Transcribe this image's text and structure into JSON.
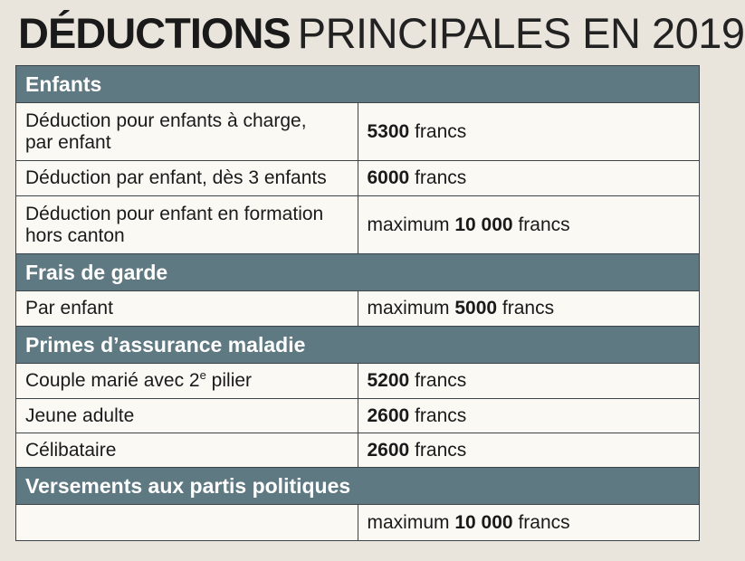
{
  "title": {
    "bold": "DÉDUCTIONS",
    "light": "PRINCIPALES EN 2019"
  },
  "sections": {
    "enfants": {
      "heading": "Enfants",
      "rows": [
        {
          "label_line1": "Déduction pour enfants à charge,",
          "label_line2": "par enfant",
          "prefix": "",
          "amount": "5300",
          "unit": "francs"
        },
        {
          "label": "Déduction par enfant, dès 3 enfants",
          "prefix": "",
          "amount": "6000",
          "unit": "francs"
        },
        {
          "label_line1": "Déduction pour enfant en formation",
          "label_line2": "hors canton",
          "prefix": "maximum",
          "amount": "10 000",
          "unit": "francs"
        }
      ]
    },
    "frais_garde": {
      "heading": "Frais de garde",
      "rows": [
        {
          "label": "Par enfant",
          "prefix": "maximum",
          "amount": "5000",
          "unit": "francs"
        }
      ]
    },
    "primes": {
      "heading": "Primes d’assurance maladie",
      "rows": [
        {
          "label_before": "Couple marié avec 2",
          "label_sup": "e",
          "label_after": " pilier",
          "prefix": "",
          "amount": "5200",
          "unit": "francs"
        },
        {
          "label": "Jeune adulte",
          "prefix": "",
          "amount": "2600",
          "unit": "francs"
        },
        {
          "label": "Célibataire",
          "prefix": "",
          "amount": "2600",
          "unit": "francs"
        }
      ]
    },
    "versements": {
      "heading": "Versements aux partis politiques",
      "rows": [
        {
          "label": "",
          "prefix": "maximum",
          "amount": "10 000",
          "unit": "francs"
        }
      ]
    }
  }
}
